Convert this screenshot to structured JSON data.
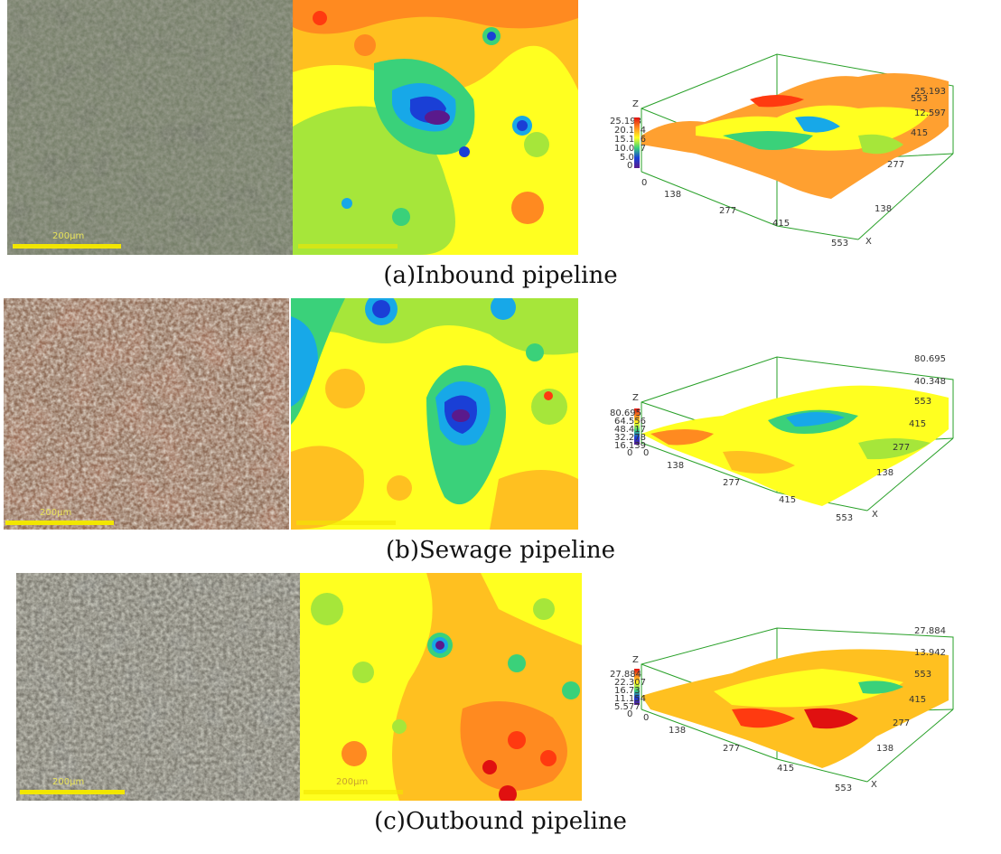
{
  "figure": {
    "panels": [
      {
        "caption": "(a)Inbound pipeline",
        "scale_label": "200μm",
        "z_ticks": [
          "25.193",
          "20.154",
          "15.116",
          "10.077",
          "5.0",
          "0"
        ],
        "z_top": "25.193",
        "z_mid": "12.597",
        "x_ticks": [
          "0",
          "138",
          "277",
          "415",
          "553"
        ],
        "y_ticks": [
          "553",
          "415",
          "277",
          "138"
        ],
        "axis_x": "X",
        "axis_z": "Z"
      },
      {
        "caption": "(b)Sewage pipeline",
        "scale_label": "200μm",
        "z_ticks": [
          "80.695",
          "64.556",
          "48.417",
          "32.278",
          "16.139",
          "0"
        ],
        "z_top": "80.695",
        "z_mid": "40.348",
        "x_ticks": [
          "0",
          "138",
          "277",
          "415",
          "553"
        ],
        "y_ticks": [
          "553",
          "415",
          "277",
          "138"
        ],
        "axis_x": "X",
        "axis_z": "Z"
      },
      {
        "caption": "(c)Outbound pipeline",
        "scale_label": "200μm",
        "z_ticks": [
          "27.884",
          "22.307",
          "16.73",
          "11.154",
          "5.577",
          "0"
        ],
        "z_top": "27.884",
        "z_mid": "13.942",
        "x_ticks": [
          "0",
          "138",
          "277",
          "415",
          "553"
        ],
        "y_ticks": [
          "553",
          "415",
          "277",
          "138"
        ],
        "axis_x": "X",
        "axis_z": "Z"
      }
    ],
    "colormap": [
      "#5a1a8c",
      "#1a3fd6",
      "#17a8e8",
      "#3ad17a",
      "#a6e63a",
      "#ffff20",
      "#ffc020",
      "#ff8a20",
      "#ff3a10",
      "#e01010"
    ]
  }
}
